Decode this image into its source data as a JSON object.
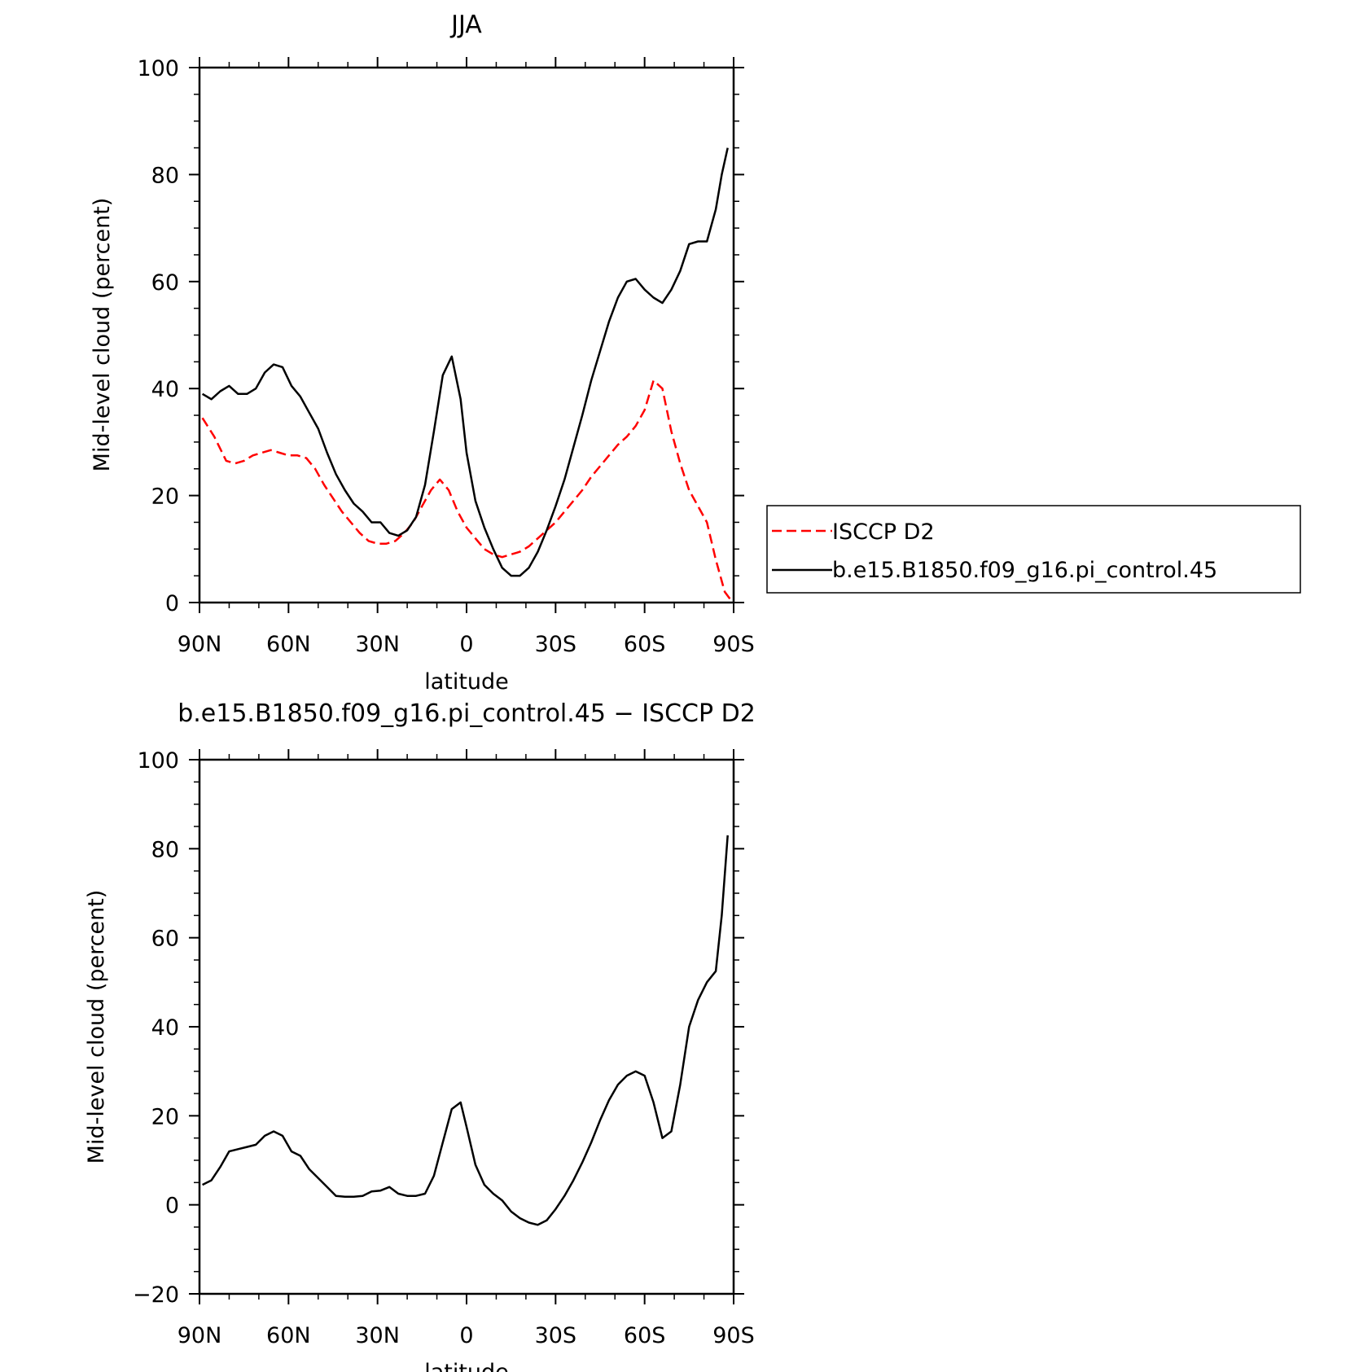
{
  "chart_data": [
    {
      "type": "line",
      "title": "JJA",
      "xlabel": "latitude",
      "ylabel": "Mid-level cloud (percent)",
      "ylim": [
        0,
        100
      ],
      "xlim": [
        90,
        -90
      ],
      "x_tick_values": [
        90,
        60,
        30,
        0,
        -30,
        -60,
        -90
      ],
      "x_tick_labels": [
        "90N",
        "60N",
        "30N",
        "0",
        "30S",
        "60S",
        "90S"
      ],
      "y_ticks": [
        0,
        20,
        40,
        60,
        80,
        100
      ],
      "grid": false,
      "legend": {
        "placement": "outside-right",
        "entries": [
          "ISCCP D2",
          "b.e15.B1850.f09_g16.pi_control.45"
        ]
      },
      "series": [
        {
          "name": "ISCCP D2",
          "color": "#ff0000",
          "style": "dashed",
          "x": [
            89,
            85,
            81,
            78,
            75,
            72,
            69,
            66,
            63,
            60,
            57,
            54,
            51,
            48,
            45,
            42,
            39,
            36,
            33,
            30,
            27,
            24,
            21,
            18,
            15,
            12,
            9,
            6,
            3,
            0,
            -3,
            -6,
            -9,
            -12,
            -15,
            -18,
            -21,
            -24,
            -27,
            -30,
            -33,
            -36,
            -39,
            -42,
            -45,
            -48,
            -51,
            -54,
            -57,
            -60,
            -63,
            -66,
            -69,
            -72,
            -75,
            -78,
            -81,
            -84,
            -87,
            -89
          ],
          "y": [
            34.5,
            31,
            26.5,
            26,
            26.5,
            27.5,
            28,
            28.5,
            28,
            27.5,
            27.5,
            27,
            25,
            22,
            19.5,
            17,
            15,
            13,
            11.5,
            11,
            11,
            11.5,
            13,
            15,
            18,
            21,
            23,
            21,
            17,
            14,
            12,
            10,
            9,
            8.5,
            9,
            9.5,
            10.5,
            12,
            13.5,
            15,
            17,
            19,
            21,
            23.5,
            25.5,
            27.5,
            29.5,
            31,
            33,
            36,
            41.5,
            40,
            32,
            26,
            21,
            18,
            15,
            8,
            2,
            0.5
          ]
        },
        {
          "name": "b.e15.B1850.f09_g16.pi_control.45",
          "color": "#000000",
          "style": "solid",
          "x": [
            89,
            86,
            83,
            80,
            77,
            74,
            71,
            68,
            65,
            62,
            59,
            56,
            53,
            50,
            47,
            44,
            41,
            38,
            35,
            32,
            29,
            26,
            23,
            20,
            17,
            14,
            11,
            8,
            5,
            2,
            0,
            -3,
            -6,
            -9,
            -12,
            -15,
            -18,
            -21,
            -24,
            -27,
            -30,
            -33,
            -36,
            -39,
            -42,
            -45,
            -48,
            -51,
            -54,
            -57,
            -60,
            -63,
            -66,
            -69,
            -72,
            -75,
            -78,
            -81,
            -84,
            -86,
            -88
          ],
          "y": [
            39,
            38,
            39.5,
            40.5,
            39,
            39,
            40,
            43,
            44.5,
            44,
            40.5,
            38.5,
            35.5,
            32.5,
            28,
            24,
            21,
            18.5,
            17,
            15,
            15,
            13,
            12.5,
            13.5,
            16,
            22,
            32,
            42.5,
            46,
            38,
            28,
            19,
            14,
            10,
            6.5,
            5,
            5,
            6.5,
            9.5,
            13.5,
            18,
            23,
            29,
            35,
            41.5,
            47,
            52.5,
            57,
            60,
            60.5,
            58.5,
            57,
            56,
            58.5,
            62,
            67,
            67.5,
            67.5,
            73.5,
            80,
            85
          ]
        }
      ]
    },
    {
      "type": "line",
      "title": "b.e15.B1850.f09_g16.pi_control.45 − ISCCP D2",
      "xlabel": "latitude",
      "ylabel": "Mid-level cloud (percent)",
      "ylim": [
        -20,
        100
      ],
      "xlim": [
        90,
        -90
      ],
      "x_tick_values": [
        90,
        60,
        30,
        0,
        -30,
        -60,
        -90
      ],
      "x_tick_labels": [
        "90N",
        "60N",
        "30N",
        "0",
        "30S",
        "60S",
        "90S"
      ],
      "y_ticks": [
        -20,
        0,
        20,
        40,
        60,
        80,
        100
      ],
      "y_tick_labels": [
        "−20",
        "0",
        "20",
        "40",
        "60",
        "80",
        "100"
      ],
      "grid": false,
      "series": [
        {
          "color": "#000000",
          "style": "solid",
          "x": [
            89,
            86,
            83,
            80,
            77,
            74,
            71,
            68,
            65,
            62,
            59,
            56,
            53,
            50,
            47,
            44,
            41,
            38,
            35,
            32,
            29,
            26,
            23,
            20,
            17,
            14,
            11,
            8,
            5,
            2,
            0,
            -3,
            -6,
            -9,
            -12,
            -15,
            -18,
            -21,
            -24,
            -27,
            -30,
            -33,
            -36,
            -39,
            -42,
            -45,
            -48,
            -51,
            -54,
            -57,
            -60,
            -63,
            -66,
            -69,
            -72,
            -75,
            -78,
            -81,
            -84,
            -86,
            -88
          ],
          "y": [
            4.5,
            5.5,
            8.5,
            12,
            12.5,
            13,
            13.5,
            15.5,
            16.5,
            15.5,
            12,
            11,
            8,
            6,
            4,
            2,
            1.8,
            1.8,
            2,
            3,
            3.2,
            4,
            2.5,
            2,
            2,
            2.5,
            6.5,
            14,
            21.5,
            23,
            17.5,
            9,
            4.5,
            2.5,
            1,
            -1.5,
            -3,
            -4,
            -4.5,
            -3.5,
            -1,
            2,
            5.5,
            9.5,
            14,
            19,
            23.5,
            27,
            29,
            30,
            29,
            23,
            15,
            16.5,
            27,
            40,
            46,
            50,
            52.5,
            65,
            83
          ]
        }
      ]
    }
  ]
}
